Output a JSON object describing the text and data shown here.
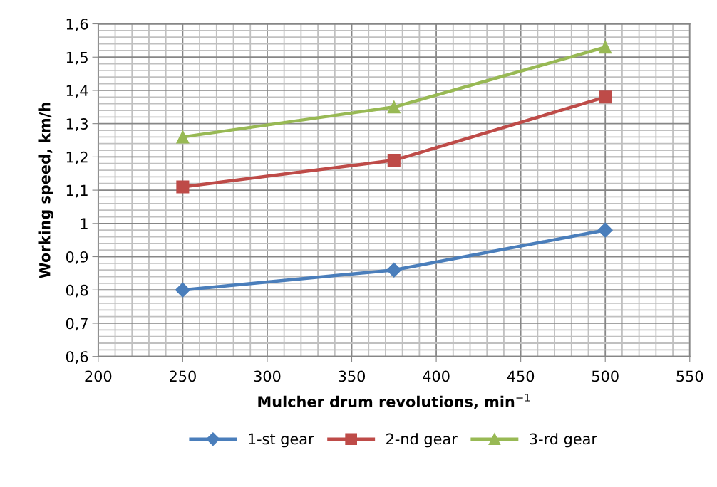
{
  "chart_data": {
    "type": "line",
    "xlabel": "Mulcher drum revolutions, min$^{−1}$",
    "ylabel": "Working speed, km/h",
    "x": [
      250,
      375,
      500
    ],
    "series": [
      {
        "name": "1-st gear",
        "color": "#4a7ebb",
        "marker": "diamond",
        "values": [
          0.8,
          0.86,
          0.98
        ]
      },
      {
        "name": "2-nd gear",
        "color": "#be4b48",
        "marker": "square",
        "values": [
          1.11,
          1.19,
          1.38
        ]
      },
      {
        "name": "3-rd gear",
        "color": "#98b954",
        "marker": "triangle",
        "values": [
          1.26,
          1.35,
          1.53
        ]
      }
    ],
    "xlim": [
      200,
      550
    ],
    "xticks": [
      200,
      250,
      300,
      350,
      400,
      450,
      500,
      550
    ],
    "ylim": [
      0.6,
      1.6
    ],
    "yticks": [
      {
        "value": 0.6,
        "label": "0,6"
      },
      {
        "value": 0.7,
        "label": "0,7"
      },
      {
        "value": 0.8,
        "label": "0,8"
      },
      {
        "value": 0.9,
        "label": "0,9"
      },
      {
        "value": 1.0,
        "label": "1"
      },
      {
        "value": 1.1,
        "label": "1,1"
      },
      {
        "value": 1.2,
        "label": "1,2"
      },
      {
        "value": 1.3,
        "label": "1,3"
      },
      {
        "value": 1.4,
        "label": "1,4"
      },
      {
        "value": 1.5,
        "label": "1,5"
      },
      {
        "value": 1.6,
        "label": "1,6"
      }
    ],
    "grid": true,
    "legend": "bottom",
    "line_style": "solid"
  }
}
